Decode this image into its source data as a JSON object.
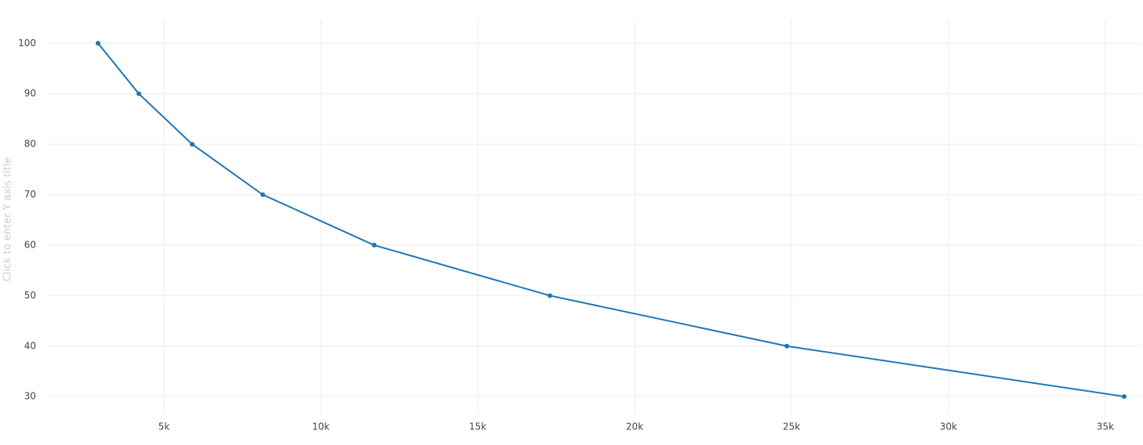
{
  "chart_data": {
    "type": "line",
    "y_axis_title": "Click to enter Y axis title",
    "x": [
      2900,
      4200,
      5900,
      8150,
      11700,
      17300,
      24850,
      35600
    ],
    "series": [
      {
        "color": "#1f77b4",
        "values": [
          100,
          90,
          80,
          70,
          60,
          50,
          40,
          30
        ]
      }
    ],
    "xlim": [
      1275,
      36150
    ],
    "xticks": [
      {
        "value": 5000,
        "label": "5k"
      },
      {
        "value": 10000,
        "label": "10k"
      },
      {
        "value": 15000,
        "label": "15k"
      },
      {
        "value": 20000,
        "label": "20k"
      },
      {
        "value": 25000,
        "label": "25k"
      },
      {
        "value": 30000,
        "label": "30k"
      },
      {
        "value": 35000,
        "label": "35k"
      }
    ],
    "ylim": [
      26.3,
      104.7
    ],
    "yticks": [
      30,
      40,
      50,
      60,
      70,
      80,
      90,
      100
    ],
    "grid": true
  }
}
